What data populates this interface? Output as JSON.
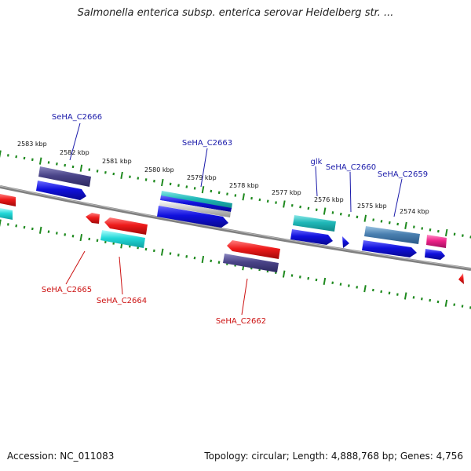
{
  "title": "Salmonella enterica subsp. enterica serovar Heidelberg str. ...",
  "footer": {
    "accession": "Accession: NC_011083",
    "summary": "Topology: circular; Length: 4,888,768 bp; Genes: 4,756"
  },
  "kbp_labels": [
    "2583 kbp",
    "2582 kbp",
    "2581 kbp",
    "2580 kbp",
    "2579 kbp",
    "2578 kbp",
    "2577 kbp",
    "2576 kbp",
    "2575 kbp",
    "2574 kbp"
  ],
  "gene_labels_forward": [
    "SeHA_C2666",
    "SeHA_C2663",
    "glk",
    "SeHA_C2660",
    "SeHA_C2659"
  ],
  "gene_labels_reverse": [
    "SeHA_C2665",
    "SeHA_C2664",
    "SeHA_C2662"
  ],
  "colors": {
    "forward_label": "#1a1aaa",
    "reverse_label": "#cc1111",
    "backbone": "#7a7a7a",
    "ticks": "#1f8a1f",
    "cds_forward": "#1010dd",
    "cds_reverse": "#ee1a1a",
    "feature_purple": "#4a4488",
    "feature_cyan": "#22d8d8",
    "feature_steel": "#4a7fb0",
    "feature_pink": "#ee2288"
  }
}
